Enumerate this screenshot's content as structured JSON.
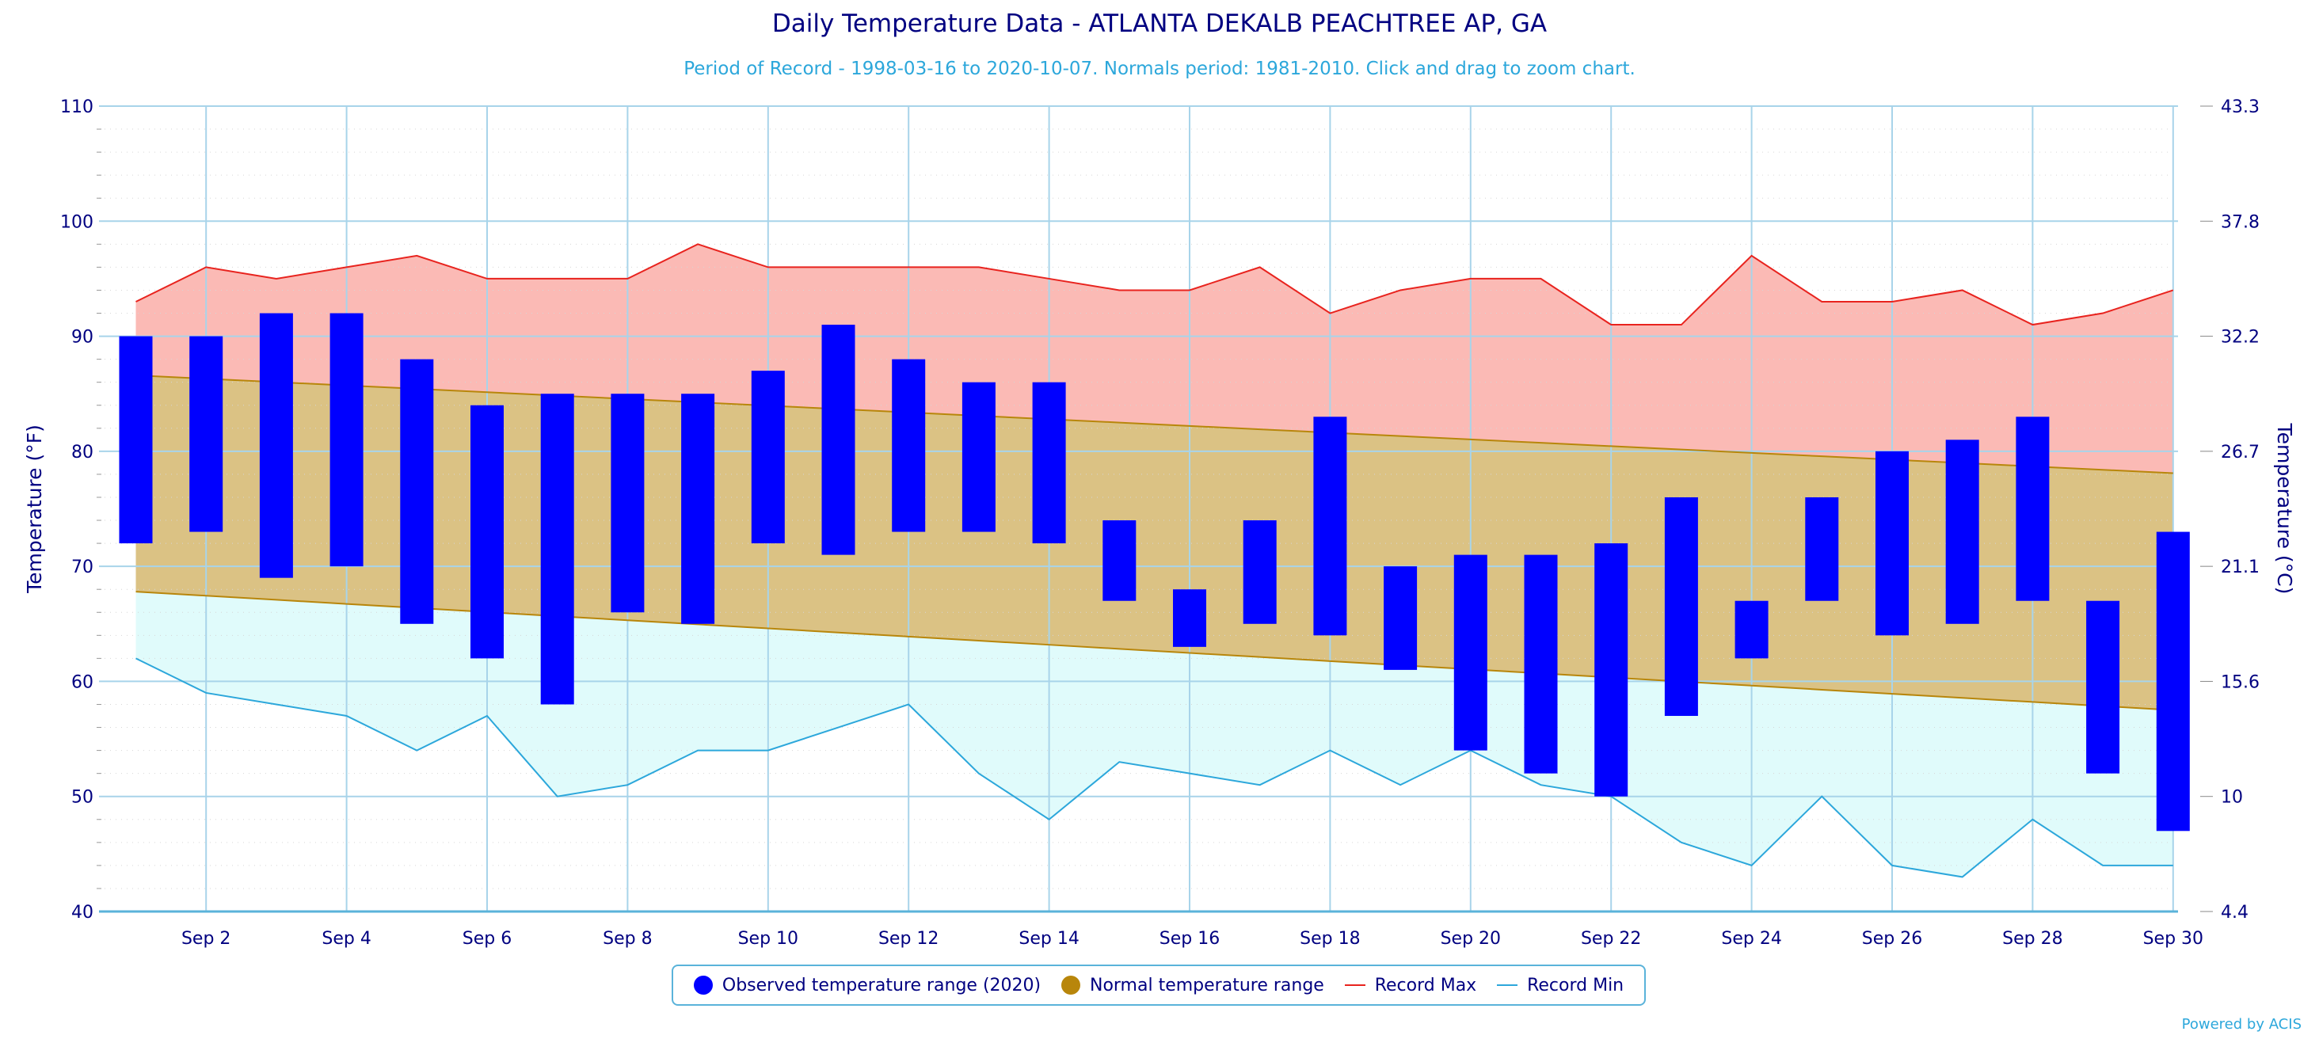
{
  "page": {
    "title": "Daily Temperature Data - ATLANTA DEKALB PEACHTREE AP, GA",
    "subtitle": "Period of Record - 1998-03-16 to 2020-10-07. Normals period: 1981-2010. Click and drag to zoom chart.",
    "credit": "Powered by ACIS"
  },
  "legend": {
    "observed": "Observed temperature range (2020)",
    "normal": "Normal temperature range",
    "record_max": "Record Max",
    "record_min": "Record Min"
  },
  "colors": {
    "observed": "#0000ff",
    "normal_fill": "#dbc284",
    "normal_line": "#b8860b",
    "record_max_line": "#e8231e",
    "record_max_fill": "#fbbab5",
    "record_min_line": "#2ca7db",
    "record_min_fill": "#e0fbfb",
    "grid": "#a8d4ea",
    "axis_text": "#000080"
  },
  "chart_data": {
    "type": "bar",
    "title": "Daily Temperature Data - ATLANTA DEKALB PEACHTREE AP, GA",
    "ylabel": "Temperature (°F)",
    "ylabel_right": "Temperature (°C)",
    "ylim": [
      40,
      110
    ],
    "yticks": [
      40,
      50,
      60,
      70,
      80,
      90,
      100,
      110
    ],
    "yticks_right": [
      "4.4",
      "10",
      "15.6",
      "21.1",
      "26.7",
      "32.2",
      "37.8",
      "43.3"
    ],
    "x": [
      1,
      2,
      3,
      4,
      5,
      6,
      7,
      8,
      9,
      10,
      11,
      12,
      13,
      14,
      15,
      16,
      17,
      18,
      19,
      20,
      21,
      22,
      23,
      24,
      25,
      26,
      27,
      28,
      29,
      30
    ],
    "xticks": [
      2,
      4,
      6,
      8,
      10,
      12,
      14,
      16,
      18,
      20,
      22,
      24,
      26,
      28,
      30
    ],
    "xtick_labels": [
      "Sep 2",
      "Sep 4",
      "Sep 6",
      "Sep 8",
      "Sep 10",
      "Sep 12",
      "Sep 14",
      "Sep 16",
      "Sep 18",
      "Sep 20",
      "Sep 22",
      "Sep 24",
      "Sep 26",
      "Sep 28",
      "Sep 30"
    ],
    "grid": true,
    "legend_position": "bottom-center",
    "series": [
      {
        "name": "Observed temperature range (2020)",
        "type": "range-bar",
        "low": [
          72,
          73,
          69,
          70,
          65,
          62,
          58,
          66,
          65,
          72,
          71,
          73,
          73,
          72,
          67,
          63,
          65,
          64,
          61,
          54,
          52,
          50,
          57,
          62,
          67,
          64,
          65,
          67,
          52,
          47
        ],
        "high": [
          90,
          90,
          92,
          92,
          88,
          84,
          85,
          85,
          85,
          87,
          91,
          88,
          86,
          86,
          74,
          68,
          74,
          83,
          70,
          71,
          71,
          72,
          76,
          67,
          76,
          80,
          81,
          83,
          67,
          73
        ]
      },
      {
        "name": "Normal temperature range",
        "type": "range-area",
        "low_start": 67.8,
        "low_end": 57.5,
        "high_start": 86.6,
        "high_end": 78.1
      },
      {
        "name": "Record Max",
        "type": "line",
        "values": [
          93,
          96,
          95,
          96,
          97,
          95,
          95,
          95,
          98,
          96,
          96,
          96,
          96,
          95,
          94,
          94,
          96,
          92,
          94,
          95,
          95,
          91,
          91,
          97,
          93,
          93,
          94,
          91,
          92,
          94
        ]
      },
      {
        "name": "Record Min",
        "type": "line",
        "values": [
          62,
          59,
          58,
          57,
          54,
          57,
          50,
          51,
          54,
          54,
          56,
          58,
          52,
          48,
          53,
          52,
          51,
          54,
          51,
          54,
          51,
          50,
          46,
          44,
          50,
          44,
          43,
          48,
          44,
          44
        ]
      }
    ]
  }
}
